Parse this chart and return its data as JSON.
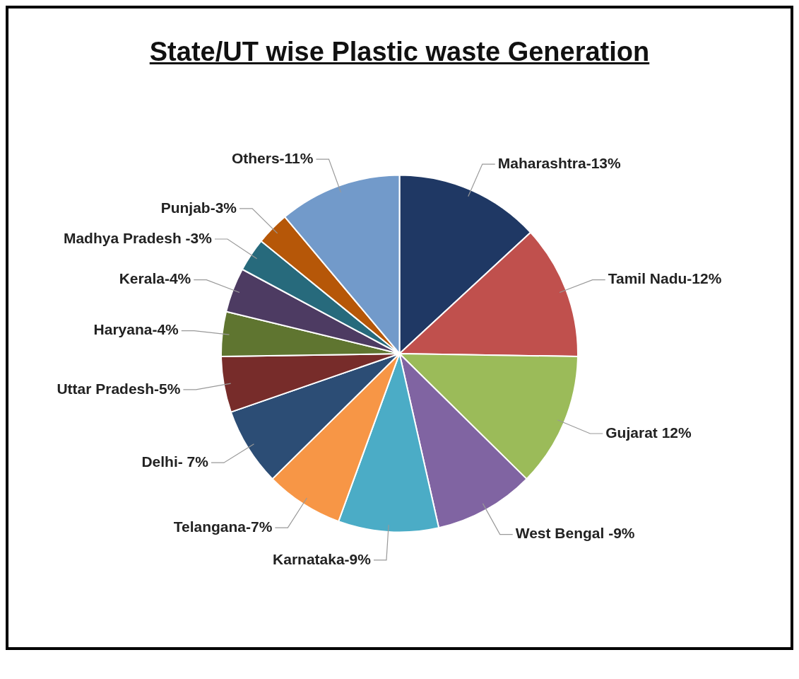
{
  "chart_data": {
    "type": "pie",
    "title": "State/UT wise Plastic waste Generation",
    "categories": [
      "Maharashtra-",
      "Tamil Nadu-",
      "Gujarat ",
      "West Bengal -",
      "Karnataka-",
      "Telangana-",
      "Delhi- ",
      "Uttar Pradesh-",
      "Haryana-",
      "Kerala-",
      "Madhya Pradesh -",
      "Punjab-",
      "Others-"
    ],
    "values": [
      13,
      12,
      12,
      9,
      9,
      7,
      7,
      5,
      4,
      4,
      3,
      3,
      11
    ],
    "value_labels": [
      "13%",
      "12%",
      "12%",
      "9%",
      "9%",
      "7%",
      "7%",
      "5%",
      "4%",
      "4%",
      "3%",
      "3%",
      "11%"
    ],
    "colors": [
      "#1f3864",
      "#c0504d",
      "#9bbb59",
      "#8064a2",
      "#4bacc6",
      "#f79646",
      "#2c4d75",
      "#772c2a",
      "#5f7530",
      "#4d3b62",
      "#276a7c",
      "#b65708",
      "#729aca"
    ]
  }
}
